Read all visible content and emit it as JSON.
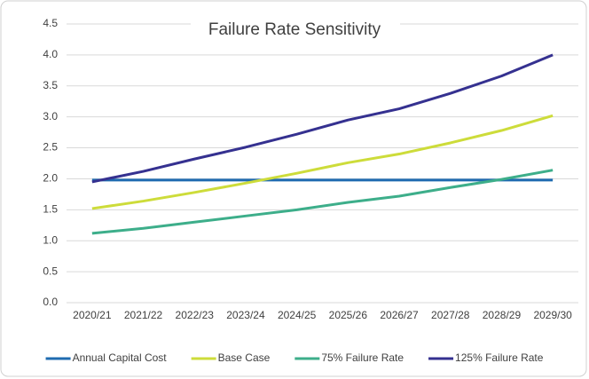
{
  "chart_data": {
    "type": "line",
    "title": "Failure Rate Sensitivity",
    "categories": [
      "2020/21",
      "2021/22",
      "2022/23",
      "2023/24",
      "2024/25",
      "2025/26",
      "2026/27",
      "2027/28",
      "2028/29",
      "2029/30"
    ],
    "series": [
      {
        "name": "Annual Capital Cost",
        "color": "#1f6bb0",
        "values": [
          1.98,
          1.98,
          1.98,
          1.98,
          1.98,
          1.98,
          1.98,
          1.98,
          1.98,
          1.98
        ]
      },
      {
        "name": "Base Case",
        "color": "#cddc3a",
        "values": [
          1.52,
          1.64,
          1.78,
          1.93,
          2.09,
          2.26,
          2.4,
          2.58,
          2.78,
          3.02
        ]
      },
      {
        "name": "75% Failure Rate",
        "color": "#3dae8a",
        "values": [
          1.12,
          1.2,
          1.3,
          1.4,
          1.5,
          1.62,
          1.72,
          1.86,
          1.99,
          2.14
        ]
      },
      {
        "name": "125% Failure Rate",
        "color": "#353190",
        "values": [
          1.95,
          2.12,
          2.32,
          2.51,
          2.72,
          2.95,
          3.13,
          3.38,
          3.66,
          4.0
        ]
      }
    ],
    "ylim": [
      0,
      4.5
    ],
    "yticks": [
      {
        "value": 0,
        "label": "0.0"
      },
      0.5,
      {
        "value": 1,
        "label": "1.0"
      },
      1.5,
      {
        "value": 2,
        "label": "2.0"
      },
      2.5,
      {
        "value": 3,
        "label": "3.0"
      },
      3.5,
      {
        "value": 4,
        "label": "4.0"
      },
      4.5
    ],
    "grid": true,
    "legend": "bottom"
  }
}
